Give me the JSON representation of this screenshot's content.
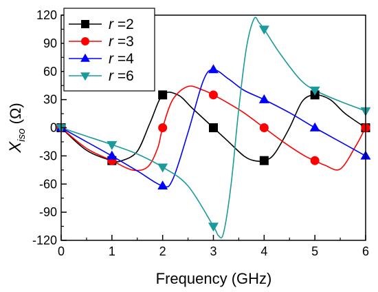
{
  "chart_data": {
    "type": "line",
    "xlabel": "Frequency (GHz)",
    "ylabel_main": "X",
    "ylabel_sub": "iso",
    "ylabel_unit": " (Ω)",
    "xlim": [
      0,
      6
    ],
    "ylim": [
      -120,
      120
    ],
    "xticks": [
      0,
      1,
      2,
      3,
      4,
      5,
      6
    ],
    "yticks": [
      -120,
      -90,
      -60,
      -30,
      0,
      30,
      60,
      90,
      120
    ],
    "grid": false,
    "legend_position": "top-left",
    "series": [
      {
        "name_var": "r",
        "name_value": "=2",
        "color": "#000000",
        "marker": "square",
        "x": [
          0,
          1,
          2,
          3,
          4,
          5,
          6
        ],
        "y": [
          0,
          -35,
          35,
          0,
          -35,
          35,
          0
        ],
        "curve_x": [
          0,
          0.5,
          1,
          1.2,
          1.5,
          1.75,
          2,
          2.3,
          2.6,
          3,
          3.3,
          3.6,
          3.8,
          4,
          4.2,
          4.5,
          4.75,
          5,
          5.3,
          5.6,
          6
        ],
        "curve_y": [
          0,
          -24,
          -35,
          -35,
          -25,
          5,
          35,
          35,
          20,
          0,
          -15,
          -30,
          -35,
          -35,
          -28,
          0,
          28,
          35,
          30,
          15,
          0
        ]
      },
      {
        "name_var": "r",
        "name_value": "=3",
        "color": "#ff0000",
        "marker": "circle",
        "x": [
          0,
          1,
          2,
          3,
          4,
          5,
          6
        ],
        "y": [
          0,
          -35,
          0,
          35,
          0,
          -35,
          0
        ],
        "curve_x": [
          0,
          0.5,
          1,
          1.4,
          1.7,
          1.9,
          2,
          2.2,
          2.5,
          2.8,
          3,
          3.3,
          3.6,
          4,
          4.4,
          4.8,
          5,
          5.2,
          5.5,
          5.8,
          5.95,
          6
        ],
        "curve_y": [
          0,
          -22,
          -35,
          -45,
          -42,
          -22,
          0,
          30,
          44,
          40,
          35,
          26,
          16,
          0,
          -16,
          -30,
          -35,
          -40,
          -44,
          -20,
          -5,
          0
        ]
      },
      {
        "name_var": "r",
        "name_value": "=4",
        "color": "#0000ff",
        "marker": "triangle-up",
        "x": [
          0,
          1,
          2,
          3,
          4,
          5,
          6
        ],
        "y": [
          0,
          -30,
          -62,
          62,
          30,
          0,
          -30
        ],
        "curve_x": [
          0,
          0.5,
          1,
          1.5,
          2,
          2.2,
          2.5,
          2.8,
          3,
          3.3,
          3.6,
          4,
          4.5,
          5,
          5.5,
          6
        ],
        "curve_y": [
          0,
          -15,
          -30,
          -46,
          -62,
          -55,
          -5,
          50,
          62,
          52,
          40,
          30,
          16,
          0,
          -15,
          -30
        ]
      },
      {
        "name_var": "r",
        "name_value": "=6",
        "color": "#1a9a9a",
        "marker": "triangle-down",
        "x": [
          0,
          1,
          2,
          3,
          4,
          5,
          6
        ],
        "y": [
          0,
          -18,
          -42,
          -105,
          105,
          40,
          18
        ],
        "curve_x": [
          0,
          0.5,
          1,
          1.5,
          2,
          2.5,
          3,
          3.1,
          3.2,
          3.35,
          3.5,
          3.65,
          3.8,
          3.9,
          4,
          4.3,
          4.7,
          5,
          5.5,
          6
        ],
        "curve_y": [
          0,
          -9,
          -18,
          -28,
          -42,
          -62,
          -105,
          -115,
          -112,
          -60,
          20,
          85,
          116,
          112,
          105,
          80,
          52,
          40,
          28,
          18
        ]
      }
    ]
  }
}
